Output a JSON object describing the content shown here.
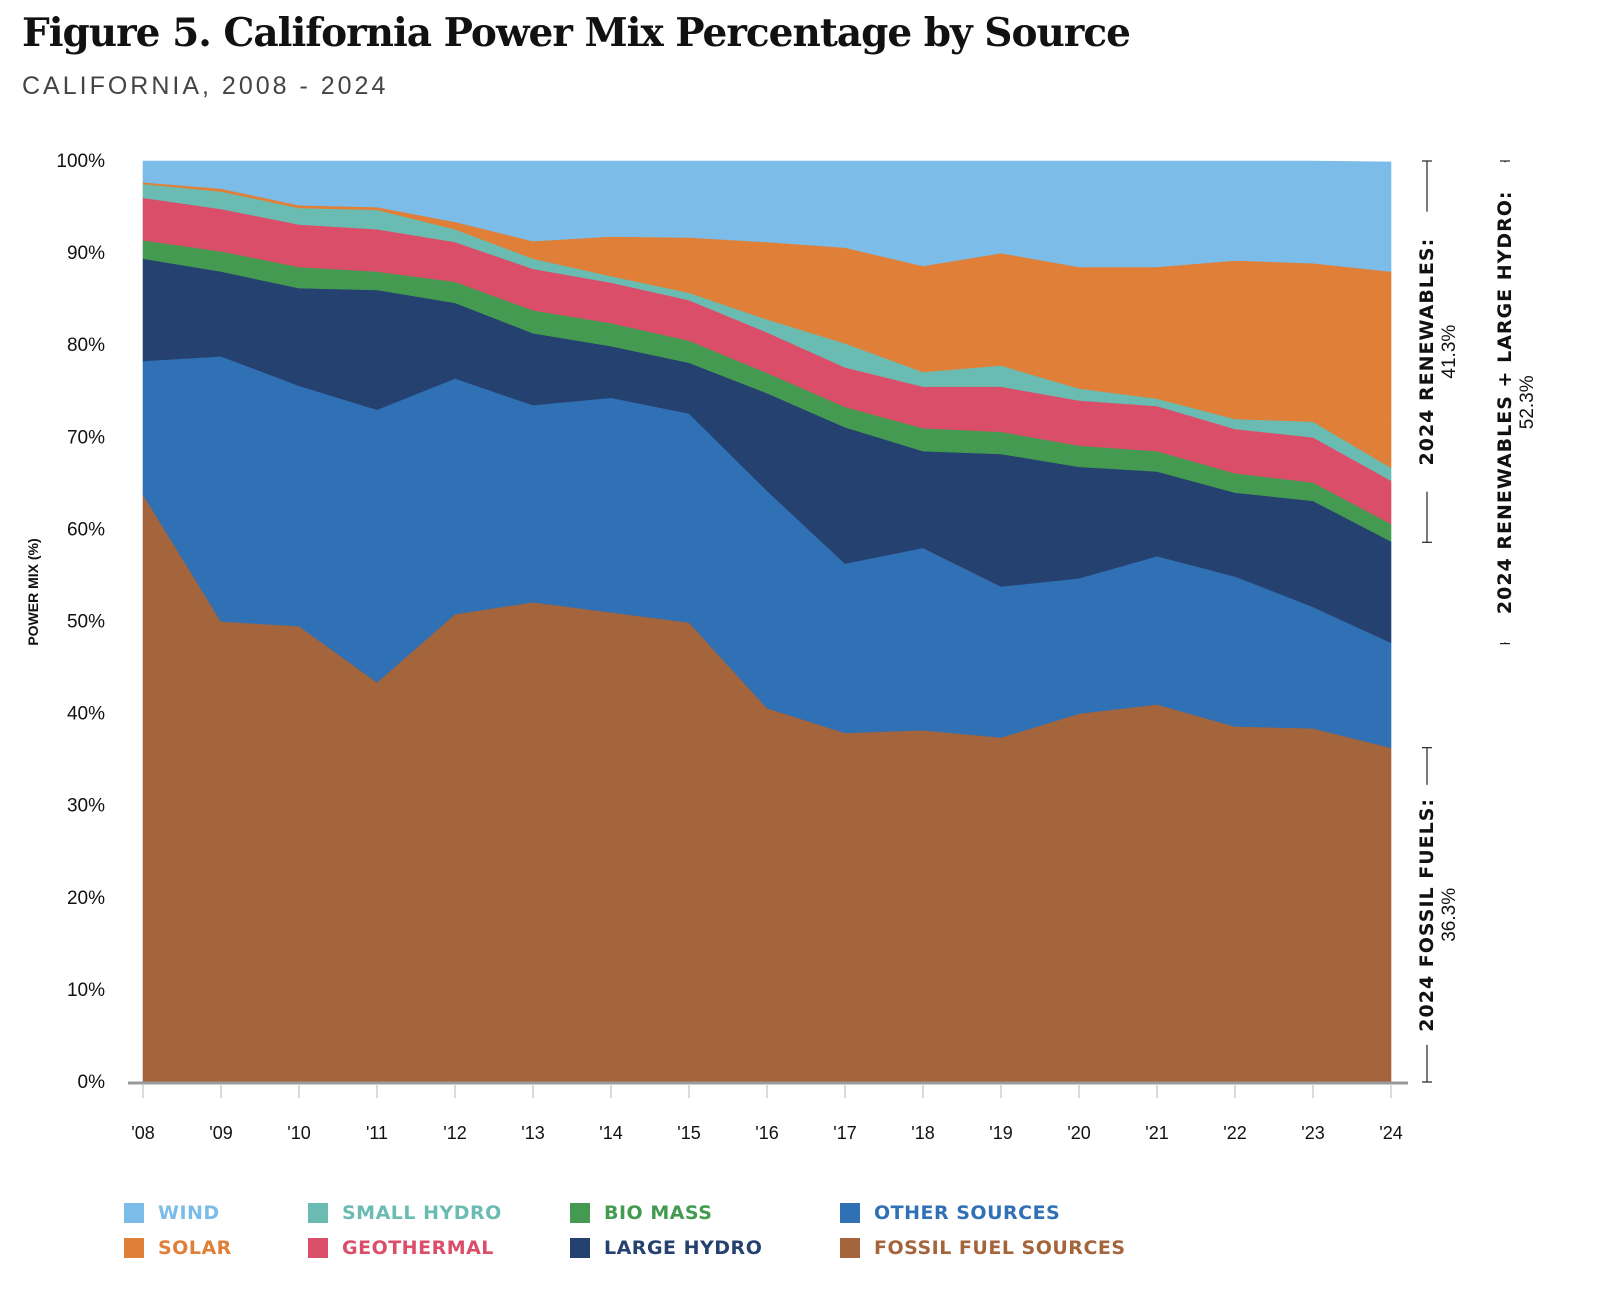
{
  "title": "Figure 5. California Power Mix Percentage by Source",
  "subtitle": "CALIFORNIA, 2008 - 2024",
  "chart_data": {
    "type": "area",
    "stacked": true,
    "title": "Figure 5. California Power Mix Percentage by Source",
    "subtitle": "CALIFORNIA, 2008 - 2024",
    "xlabel": "",
    "ylabel": "POWER MIX (%)",
    "ylim": [
      0,
      100
    ],
    "yticks": [
      0,
      10,
      20,
      30,
      40,
      50,
      60,
      70,
      80,
      90,
      100
    ],
    "ytick_labels": [
      "0%",
      "10%",
      "20%",
      "30%",
      "40%",
      "50%",
      "60%",
      "70%",
      "80%",
      "90%",
      "100%"
    ],
    "categories": [
      "'08",
      "'09",
      "'10",
      "'11",
      "'12",
      "'13",
      "'14",
      "'15",
      "'16",
      "'17",
      "'18",
      "'19",
      "'20",
      "'21",
      "'22",
      "'23",
      "'24"
    ],
    "grid": false,
    "legend_position": "bottom",
    "series": [
      {
        "name": "FOSSIL FUEL SOURCES",
        "color": "#A4643C",
        "values": [
          63.8,
          50.0,
          49.5,
          43.4,
          50.8,
          52.1,
          51.0,
          49.9,
          40.6,
          37.9,
          38.2,
          37.4,
          40.0,
          41.0,
          38.6,
          38.4,
          36.3
        ]
      },
      {
        "name": "OTHER SOURCES",
        "color": "#3070B4",
        "values": [
          14.5,
          28.8,
          26.1,
          29.6,
          25.6,
          21.4,
          23.3,
          22.7,
          23.6,
          18.4,
          19.8,
          16.4,
          14.7,
          16.1,
          16.3,
          13.2,
          11.4
        ]
      },
      {
        "name": "LARGE HYDRO",
        "color": "#254170",
        "values": [
          11.1,
          9.2,
          10.6,
          13.0,
          8.2,
          7.8,
          5.6,
          5.5,
          10.6,
          14.8,
          10.5,
          14.4,
          12.1,
          9.2,
          9.1,
          11.5,
          11.0
        ]
      },
      {
        "name": "BIO MASS",
        "color": "#449A50",
        "values": [
          2.0,
          2.2,
          2.3,
          2.0,
          2.3,
          2.5,
          2.5,
          2.4,
          2.2,
          2.2,
          2.5,
          2.4,
          2.3,
          2.2,
          2.1,
          2.0,
          1.9
        ]
      },
      {
        "name": "GEOTHERMAL",
        "color": "#DA4E69",
        "values": [
          4.6,
          4.6,
          4.6,
          4.6,
          4.3,
          4.5,
          4.4,
          4.4,
          4.4,
          4.3,
          4.5,
          4.9,
          4.9,
          4.9,
          4.8,
          4.9,
          4.7
        ]
      },
      {
        "name": "SMALL HYDRO",
        "color": "#6ABCB3",
        "values": [
          1.5,
          1.9,
          1.8,
          2.1,
          1.4,
          1.1,
          0.7,
          0.8,
          1.4,
          2.6,
          1.6,
          2.3,
          1.3,
          0.8,
          1.1,
          1.7,
          1.4
        ]
      },
      {
        "name": "SOLAR",
        "color": "#E07F38",
        "values": [
          0.2,
          0.3,
          0.3,
          0.3,
          0.8,
          1.9,
          4.3,
          6.0,
          8.4,
          10.4,
          11.5,
          12.2,
          13.2,
          14.3,
          17.2,
          17.2,
          21.3
        ]
      },
      {
        "name": "WIND",
        "color": "#7BBDE8",
        "values": [
          2.3,
          3.0,
          4.8,
          5.0,
          6.6,
          8.7,
          8.2,
          8.3,
          8.8,
          9.4,
          11.4,
          10.0,
          11.5,
          11.5,
          10.8,
          11.1,
          11.9
        ]
      }
    ],
    "annotations": [
      {
        "label": "2024 RENEWABLES:",
        "value": "41.3%",
        "range": [
          58.6,
          100
        ]
      },
      {
        "label": "2024 RENEWABLES + LARGE HYDRO:",
        "value": "52.3%",
        "range": [
          47.6,
          100
        ]
      },
      {
        "label": "2024 FOSSIL FUELS:",
        "value": "36.3%",
        "range": [
          0,
          36.3
        ]
      }
    ]
  },
  "legend": [
    {
      "label": "WIND",
      "color": "#7BBDE8"
    },
    {
      "label": "SMALL HYDRO",
      "color": "#6ABCB3"
    },
    {
      "label": "BIO MASS",
      "color": "#449A50"
    },
    {
      "label": "OTHER SOURCES",
      "color": "#3070B4"
    },
    {
      "label": "SOLAR",
      "color": "#E07F38"
    },
    {
      "label": "GEOTHERMAL",
      "color": "#DA4E69"
    },
    {
      "label": "LARGE HYDRO",
      "color": "#254170"
    },
    {
      "label": "FOSSIL FUEL SOURCES",
      "color": "#A4643C"
    }
  ]
}
